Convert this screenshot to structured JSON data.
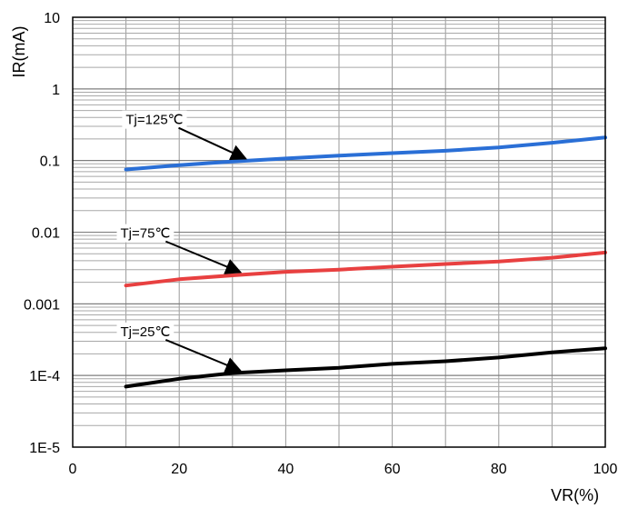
{
  "chart_data": {
    "type": "line",
    "title": "",
    "xlabel": "VR(%)",
    "ylabel": "IR(mA)",
    "xlim": [
      0,
      100
    ],
    "ylim": [
      1e-05,
      10
    ],
    "yscale": "log",
    "grid": true,
    "x_ticks": [
      0,
      20,
      40,
      60,
      80,
      100
    ],
    "x_tick_labels": [
      "0",
      "20",
      "40",
      "60",
      "80",
      "100"
    ],
    "y_ticks": [
      1e-05,
      0.0001,
      0.001,
      0.01,
      0.1,
      1,
      10
    ],
    "y_tick_labels": [
      "1E-5",
      "1E-4",
      "0.001",
      "0.01",
      "0.1",
      "1",
      "10"
    ],
    "series": [
      {
        "name": "Tj=125℃",
        "color": "#2a6fd6",
        "x": [
          10,
          20,
          30,
          40,
          50,
          60,
          70,
          80,
          90,
          100
        ],
        "y": [
          0.075,
          0.086,
          0.097,
          0.107,
          0.117,
          0.127,
          0.137,
          0.152,
          0.177,
          0.21
        ]
      },
      {
        "name": "Tj=75℃",
        "color": "#e84040",
        "x": [
          10,
          20,
          30,
          40,
          50,
          60,
          70,
          80,
          90,
          100
        ],
        "y": [
          0.0018,
          0.0022,
          0.0025,
          0.0028,
          0.003,
          0.0033,
          0.0036,
          0.0039,
          0.0044,
          0.0052
        ]
      },
      {
        "name": "Tj=25℃",
        "color": "#000000",
        "x": [
          10,
          20,
          30,
          40,
          50,
          60,
          70,
          80,
          90,
          100
        ],
        "y": [
          7e-05,
          9e-05,
          0.000108,
          0.000118,
          0.000128,
          0.000145,
          0.000158,
          0.000178,
          0.00021,
          0.00024
        ]
      }
    ],
    "annotations": [
      {
        "text": "Tj=125℃",
        "series": 0,
        "arrow_to_x": 33,
        "arrow_to_y": 0.1
      },
      {
        "text": "Tj=75℃",
        "series": 1,
        "arrow_to_x": 32,
        "arrow_to_y": 0.0026
      },
      {
        "text": "Tj=25℃",
        "series": 2,
        "arrow_to_x": 32,
        "arrow_to_y": 0.00011
      }
    ]
  }
}
